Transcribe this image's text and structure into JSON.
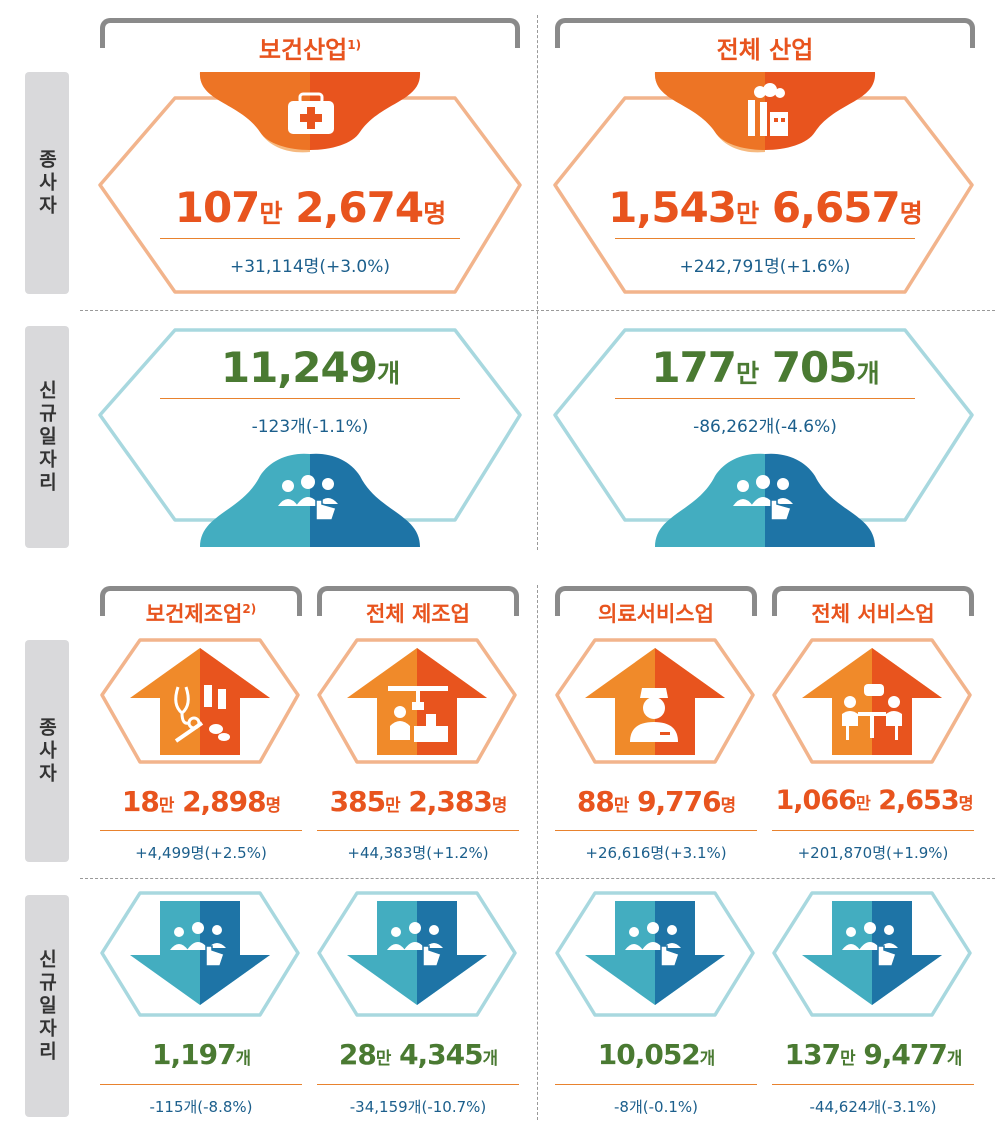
{
  "sidebar": {
    "workers": "종사자",
    "new_jobs": "신규일자리"
  },
  "top": {
    "health": {
      "header": "보건산업",
      "header_sup": "1)",
      "workers": {
        "num1": "107",
        "unit1": "만",
        "num2": "2,674",
        "unit2": "명",
        "change": "+31,114명(+3.0%)"
      },
      "jobs": {
        "num": "11,249",
        "unit": "개",
        "change": "-123개(-1.1%)"
      }
    },
    "all": {
      "header": "전체 산업",
      "workers": {
        "num1": "1,543",
        "unit1": "만",
        "num2": "6,657",
        "unit2": "명",
        "change": "+242,791명(+1.6%)"
      },
      "jobs": {
        "num1": "177",
        "unit1": "만",
        "num2": "705",
        "unit2": "개",
        "change": "-86,262개(-4.6%)"
      }
    }
  },
  "bottom": {
    "health_mfg": {
      "header": "보건제조업",
      "header_sup": "2)",
      "workers": {
        "num1": "18",
        "unit1": "만",
        "num2": "2,898",
        "unit2": "명",
        "change": "+4,499명(+2.5%)"
      },
      "jobs": {
        "num": "1,197",
        "unit": "개",
        "change": "-115개(-8.8%)"
      }
    },
    "all_mfg": {
      "header": "전체 제조업",
      "workers": {
        "num1": "385",
        "unit1": "만",
        "num2": "2,383",
        "unit2": "명",
        "change": "+44,383명(+1.2%)"
      },
      "jobs": {
        "num1": "28",
        "unit1": "만",
        "num2": "4,345",
        "unit2": "개",
        "change": "-34,159개(-10.7%)"
      }
    },
    "medical_svc": {
      "header": "의료서비스업",
      "workers": {
        "num1": "88",
        "unit1": "만",
        "num2": "9,776",
        "unit2": "명",
        "change": "+26,616명(+3.1%)"
      },
      "jobs": {
        "num": "10,052",
        "unit": "개",
        "change": "-8개(-0.1%)"
      }
    },
    "all_svc": {
      "header": "전체 서비스업",
      "workers": {
        "num1": "1,066",
        "unit1": "만",
        "num2": "2,653",
        "unit2": "명",
        "change": "+201,870명(+1.9%)"
      },
      "jobs": {
        "num1": "137",
        "unit1": "만",
        "num2": "9,477",
        "unit2": "개",
        "change": "-44,624개(-3.1%)"
      }
    }
  },
  "colors": {
    "orange": "#e8541e",
    "green": "#4a7a32",
    "teal": "#43adc0",
    "blue": "#1e74a6",
    "peach": "#f2b48c",
    "light_teal": "#a8d8df"
  }
}
